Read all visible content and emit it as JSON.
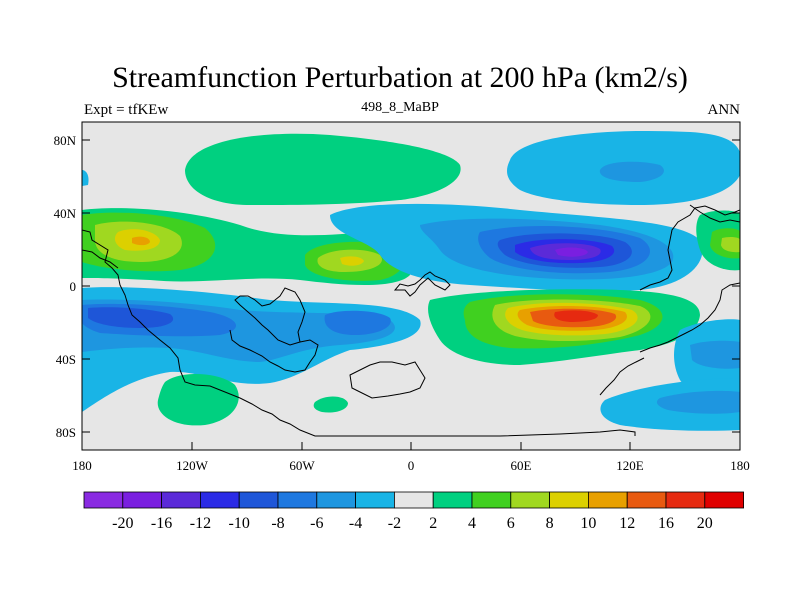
{
  "title": "Streamfunction Perturbation at 200 hPa (km2/s)",
  "left_string": "Expt = tfKEw",
  "center_string": "498_8_MaBP",
  "right_string": "ANN",
  "lat_labels": [
    "80N",
    "40N",
    "0",
    "40S",
    "80S"
  ],
  "lon_labels": [
    "180",
    "120W",
    "60W",
    "0",
    "60E",
    "120E",
    "180"
  ],
  "colorbar": {
    "labels": [
      "-20",
      "-16",
      "-12",
      "-10",
      "-8",
      "-6",
      "-4",
      "-2",
      "2",
      "4",
      "6",
      "8",
      "10",
      "12",
      "16",
      "20"
    ],
    "colors": [
      "#8a2be2",
      "#7a1fe0",
      "#5b2ad8",
      "#2b2be6",
      "#1e56d8",
      "#1e78e0",
      "#1e96e0",
      "#19b4e6",
      "#e6e6e6",
      "#00d080",
      "#40d020",
      "#a0d820",
      "#dcd000",
      "#e8a000",
      "#e85a10",
      "#e62a10",
      "#e00000"
    ]
  }
}
